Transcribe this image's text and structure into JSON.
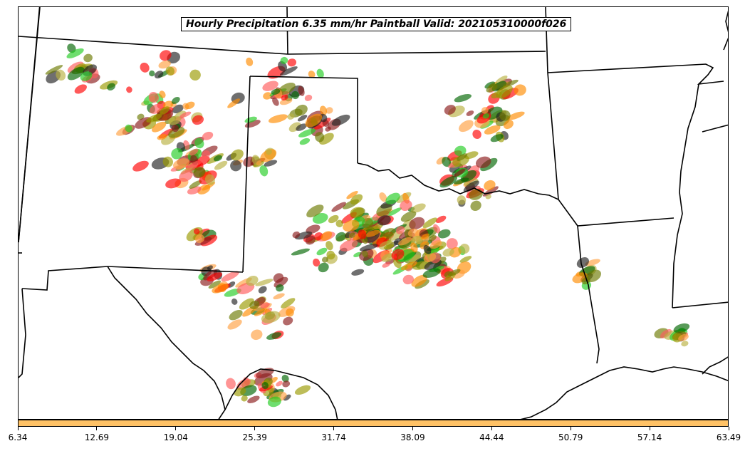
{
  "title": "Hourly Precipitation 6.35 mm/hr Paintball Valid: 202105310000f026",
  "colorbar": {
    "color": "#ffc266",
    "tick_labels": [
      "6.34",
      "12.69",
      "19.04",
      "25.39",
      "31.74",
      "38.09",
      "44.44",
      "50.79",
      "57.14",
      "63.49"
    ]
  },
  "member_colors": [
    "#ff0000",
    "#ff5a5a",
    "#22cc22",
    "#006600",
    "#999900",
    "#6b7a00",
    "#ff8c00",
    "#ffa040",
    "#8b1a1a",
    "#222222",
    "#b8b040"
  ]
}
